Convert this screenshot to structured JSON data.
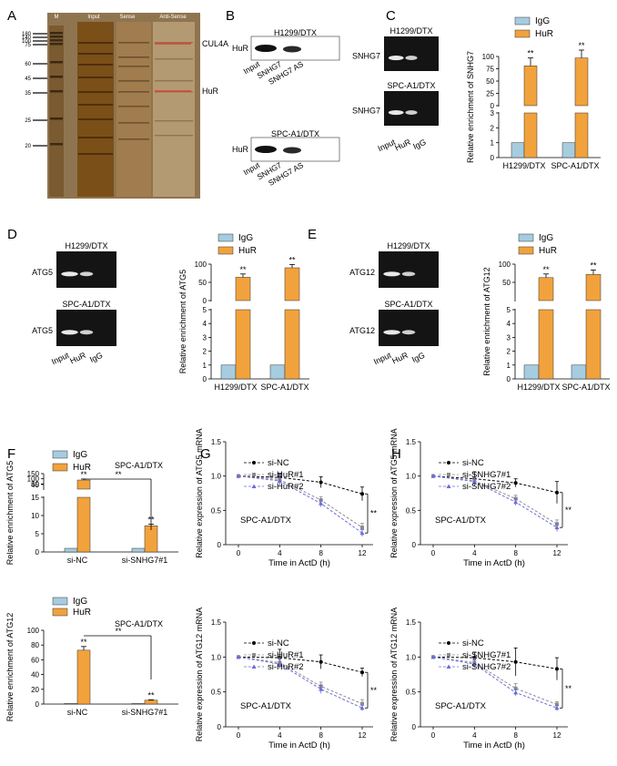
{
  "panel_letters": [
    "A",
    "B",
    "C",
    "D",
    "E",
    "F",
    "G",
    "H"
  ],
  "colors": {
    "igg": "#a6cce0",
    "hur": "#f2a23c",
    "si_nc": "#000000",
    "line1": "#8c8c8c",
    "line2": "#6b6bdc",
    "gel_bg": "#141414",
    "silver_bg": "#9a7d55"
  },
  "panel_a": {
    "col_labels": [
      "M",
      "Input",
      "Sense",
      "Anti-Sense"
    ],
    "marker_labels": [
      "180",
      "140",
      "100",
      "75",
      "60",
      "45",
      "35",
      "25",
      "20"
    ],
    "arrows": [
      "CUL4A",
      "HuR"
    ]
  },
  "panel_b": {
    "blots": [
      {
        "title": "H1299/DTX",
        "row_label": "HuR"
      },
      {
        "title": "SPC-A1/DTX",
        "row_label": "HuR"
      }
    ],
    "lanes": [
      "Input",
      "SNHG7",
      "SNHG7 AS"
    ]
  },
  "gel_lanes": [
    "Input",
    "HuR",
    "IgG"
  ],
  "panel_c_gel": {
    "titles": [
      "H1299/DTX",
      "SPC-A1/DTX"
    ],
    "row_label": "SNHG7"
  },
  "panel_d_gel": {
    "titles": [
      "H1299/DTX",
      "SPC-A1/DTX"
    ],
    "row_label": "ATG5"
  },
  "panel_e_gel": {
    "titles": [
      "H1299/DTX",
      "SPC-A1/DTX"
    ],
    "row_label": "ATG12"
  },
  "legend_bar": [
    "IgG",
    "HuR"
  ],
  "legend_line": [
    "si-NC"
  ],
  "legend_hur": [
    "si-HuR#1",
    "si-HuR#2"
  ],
  "legend_snhg": [
    "si-SNHG7#1",
    "si-SNHG7#2"
  ],
  "sig": "**",
  "cell_line_label": "SPC-A1/DTX",
  "chart_data": [
    {
      "id": "C",
      "type": "bar",
      "ylabel": "Relative enrichment of SNHG7",
      "categories": [
        "H1299/DTX",
        "SPC-A1/DTX"
      ],
      "series": [
        {
          "name": "IgG",
          "values": [
            1,
            1
          ]
        },
        {
          "name": "HuR",
          "values": [
            81,
            97
          ],
          "errors": [
            16,
            16
          ]
        }
      ],
      "ylim_lower": [
        0,
        3
      ],
      "ylim_upper": [
        0,
        100
      ],
      "yticks_lower": [
        "0",
        "1",
        "2",
        "3"
      ],
      "yticks_upper": [
        "0",
        "25",
        "50",
        "75",
        "100"
      ]
    },
    {
      "id": "D",
      "type": "bar",
      "ylabel": "Relative enrichment of ATG5",
      "categories": [
        "H1299/DTX",
        "SPC-A1/DTX"
      ],
      "series": [
        {
          "name": "IgG",
          "values": [
            1,
            1
          ]
        },
        {
          "name": "HuR",
          "values": [
            64,
            90
          ],
          "errors": [
            9,
            9
          ]
        }
      ],
      "ylim_lower": [
        0,
        5
      ],
      "ylim_upper": [
        0,
        100
      ],
      "yticks_lower": [
        "0",
        "1",
        "2",
        "3",
        "4",
        "5"
      ],
      "yticks_upper": [
        "0",
        "50",
        "100"
      ]
    },
    {
      "id": "E",
      "type": "bar",
      "ylabel": "Relative enrichment of ATG12",
      "categories": [
        "H1299/DTX",
        "SPC-A1/DTX"
      ],
      "series": [
        {
          "name": "IgG",
          "values": [
            1,
            1
          ]
        },
        {
          "name": "HuR",
          "values": [
            63,
            72
          ],
          "errors": [
            10,
            12
          ]
        }
      ],
      "ylim_lower": [
        0,
        5
      ],
      "ylim_upper": [
        0,
        100
      ],
      "yticks_lower": [
        "0",
        "1",
        "2",
        "3",
        "4",
        "5"
      ],
      "yticks_upper": [
        "50",
        "100"
      ]
    },
    {
      "id": "F1",
      "type": "bar",
      "ylabel": "Relative enrichment of ATG5",
      "categories": [
        "si-NC",
        "si-SNHG7#1"
      ],
      "series": [
        {
          "name": "IgG",
          "values": [
            1,
            1
          ]
        },
        {
          "name": "HuR",
          "values": [
            88,
            7.2
          ],
          "errors": [
            10,
            0.4
          ]
        }
      ],
      "ylim_lower": [
        0,
        15
      ],
      "ylim_upper": [
        0,
        150
      ],
      "yticks_lower": [
        "0",
        "5",
        "10",
        "15"
      ],
      "yticks_upper": [
        "45",
        "50",
        "100",
        "150"
      ]
    },
    {
      "id": "F2",
      "type": "bar",
      "ylabel": "Relative enrichment of ATG12",
      "categories": [
        "si-NC",
        "si-SNHG7#1"
      ],
      "series": [
        {
          "name": "IgG",
          "values": [
            1,
            1
          ]
        },
        {
          "name": "HuR",
          "values": [
            73,
            5.2
          ],
          "errors": [
            5,
            0.6
          ]
        }
      ],
      "yticks": [
        "0",
        "20",
        "40",
        "60",
        "80",
        "100"
      ],
      "ylim": [
        0,
        100
      ]
    },
    {
      "id": "G1",
      "type": "line",
      "ylabel": "Relative expression of ATG5 mRNA",
      "xlabel": "Time in ActD (h)",
      "x": [
        0,
        4,
        8,
        12
      ],
      "series": [
        {
          "name": "si-NC",
          "values": [
            1.0,
            0.98,
            0.91,
            0.74
          ],
          "errors": [
            0,
            0.06,
            0.08,
            0.1
          ]
        },
        {
          "name": "si-HuR#1",
          "values": [
            1.0,
            0.95,
            0.65,
            0.25
          ],
          "errors": [
            0,
            0.08,
            0.05,
            0.06
          ]
        },
        {
          "name": "si-HuR#2",
          "values": [
            1.0,
            0.93,
            0.6,
            0.17
          ],
          "errors": [
            0,
            0.08,
            0.05,
            0.05
          ]
        }
      ],
      "yticks": [
        "0",
        "0.5",
        "1.0",
        "1.5"
      ],
      "xticks": [
        "0",
        "4",
        "8",
        "12"
      ],
      "ylim": [
        0,
        1.5
      ]
    },
    {
      "id": "G2",
      "type": "line",
      "ylabel": "Relative expression of ATG12 mRNA",
      "xlabel": "Time in ActD (h)",
      "x": [
        0,
        4,
        8,
        12
      ],
      "series": [
        {
          "name": "si-NC",
          "values": [
            1.0,
            0.99,
            0.93,
            0.78
          ],
          "errors": [
            0,
            0.12,
            0.1,
            0.06
          ]
        },
        {
          "name": "si-HuR#1",
          "values": [
            1.0,
            0.92,
            0.58,
            0.33
          ],
          "errors": [
            0,
            0.07,
            0.06,
            0.06
          ]
        },
        {
          "name": "si-HuR#2",
          "values": [
            1.0,
            0.9,
            0.54,
            0.27
          ],
          "errors": [
            0,
            0.07,
            0.06,
            0.04
          ]
        }
      ],
      "yticks": [
        "0",
        "0.5",
        "1.0",
        "1.5"
      ],
      "xticks": [
        "0",
        "4",
        "8",
        "12"
      ],
      "ylim": [
        0,
        1.5
      ]
    },
    {
      "id": "H1",
      "type": "line",
      "ylabel": "Relative expression of ATG5 mRNA",
      "xlabel": "Time in ActD (h)",
      "x": [
        0,
        4,
        8,
        12
      ],
      "series": [
        {
          "name": "si-NC",
          "values": [
            1.0,
            0.96,
            0.9,
            0.76
          ],
          "errors": [
            0,
            0.1,
            0.06,
            0.16
          ]
        },
        {
          "name": "si-SNHG7#1",
          "values": [
            1.0,
            0.93,
            0.67,
            0.3
          ],
          "errors": [
            0,
            0.05,
            0.05,
            0.06
          ]
        },
        {
          "name": "si-SNHG7#2",
          "values": [
            1.0,
            0.92,
            0.62,
            0.25
          ],
          "errors": [
            0,
            0.05,
            0.05,
            0.06
          ]
        }
      ],
      "yticks": [
        "0",
        "0.5",
        "1.0",
        "1.5"
      ],
      "xticks": [
        "0",
        "4",
        "8",
        "12"
      ],
      "ylim": [
        0,
        1.5
      ]
    },
    {
      "id": "H2",
      "type": "line",
      "ylabel": "Relative expression of ATG12 mRNA",
      "xlabel": "Time in ActD (h)",
      "x": [
        0,
        4,
        8,
        12
      ],
      "series": [
        {
          "name": "si-NC",
          "values": [
            1.0,
            0.99,
            0.93,
            0.83
          ],
          "errors": [
            0,
            0.08,
            0.2,
            0.16
          ]
        },
        {
          "name": "si-SNHG7#1",
          "values": [
            1.0,
            0.92,
            0.55,
            0.32
          ],
          "errors": [
            0,
            0.06,
            0.07,
            0.04
          ]
        },
        {
          "name": "si-SNHG7#2",
          "values": [
            1.0,
            0.9,
            0.49,
            0.27
          ],
          "errors": [
            0,
            0.06,
            0.05,
            0.04
          ]
        }
      ],
      "yticks": [
        "0",
        "0.5",
        "1.0",
        "1.5"
      ],
      "xticks": [
        "0",
        "4",
        "8",
        "12"
      ],
      "ylim": [
        0,
        1.5
      ]
    }
  ]
}
